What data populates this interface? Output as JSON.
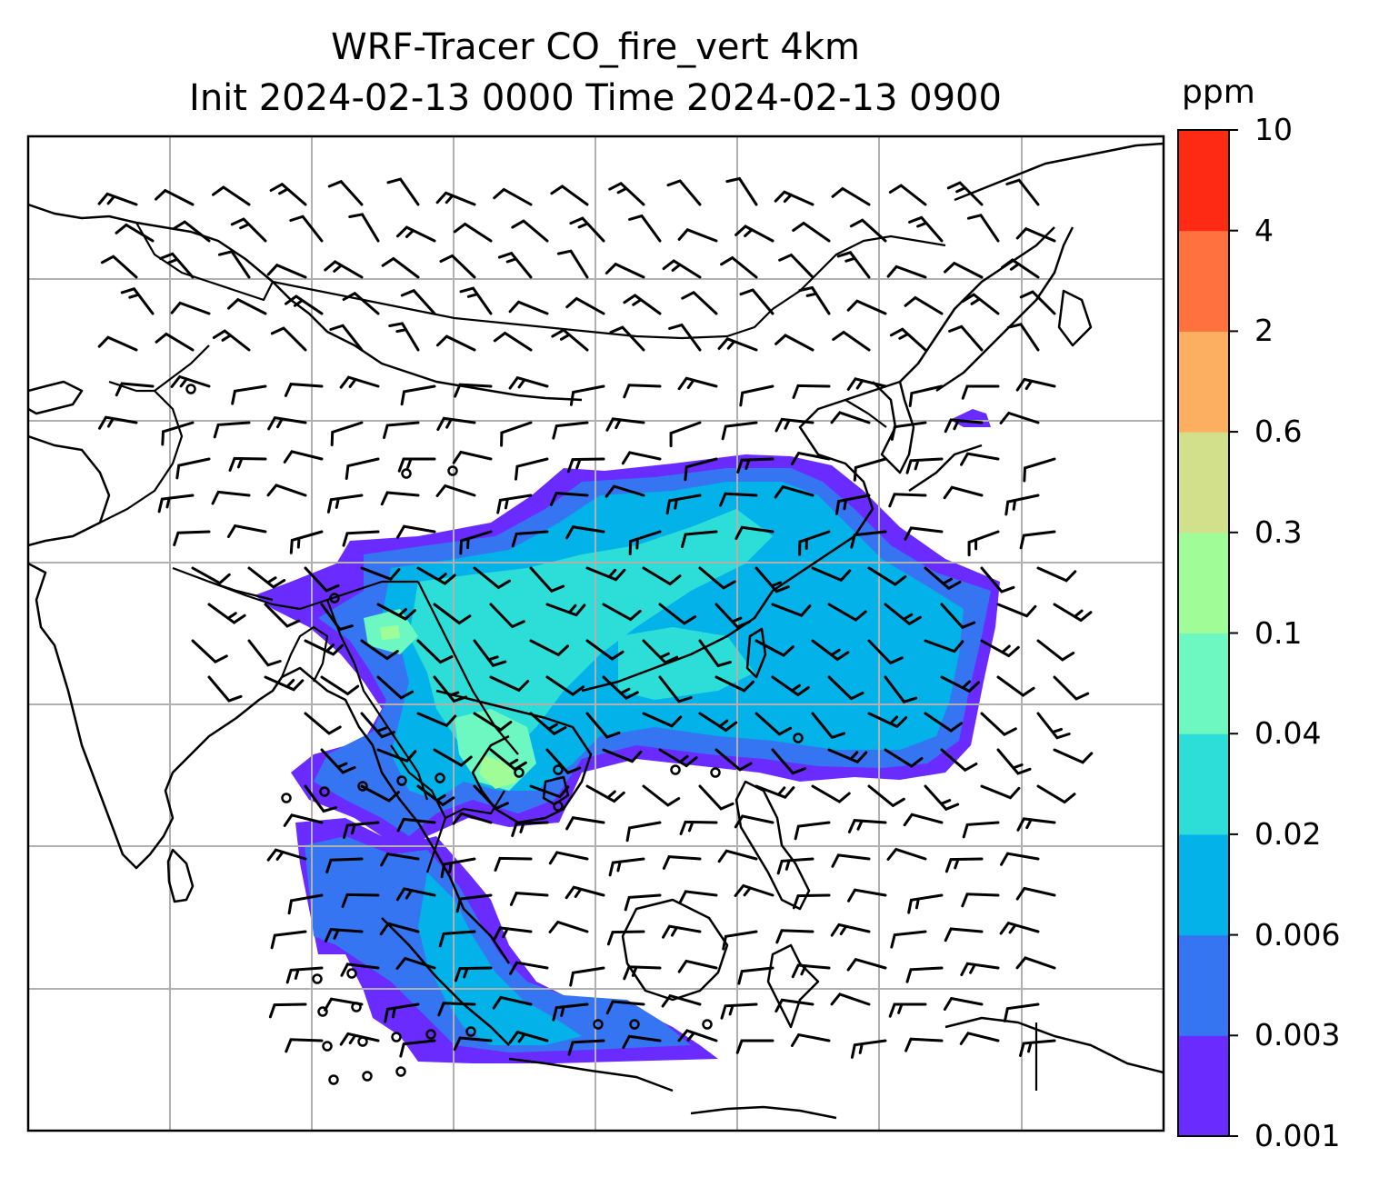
{
  "title": {
    "line1": "WRF-Tracer CO_fire_vert 4km",
    "line2": "Init 2024-02-13 0000 Time 2024-02-13 0900"
  },
  "colorbar": {
    "unit": "ppm",
    "levels": [
      "0.001",
      "0.003",
      "0.006",
      "0.02",
      "0.04",
      "0.1",
      "0.3",
      "0.6",
      "2",
      "4",
      "10"
    ],
    "colors": [
      "#6a2bff",
      "#3675f2",
      "#03b2e8",
      "#2dded8",
      "#6cf8c0",
      "#9ffc97",
      "#d2e08b",
      "#fdaf61",
      "#ff7240",
      "#ff2a14"
    ]
  },
  "map": {
    "projection": "lat-lon",
    "gridlines": true,
    "coastlines": true,
    "borders": true,
    "wind_barbs": true,
    "field": "CO_fire_vert"
  }
}
